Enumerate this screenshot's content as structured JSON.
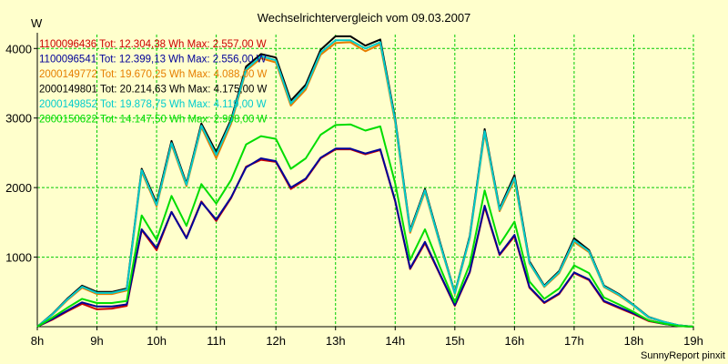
{
  "chart_data": {
    "type": "line",
    "title": "Wechselrichtervergleich vom 09.03.2007",
    "ylabel": "W",
    "xlabel": "",
    "footer": "SunnyReport pinxit",
    "grid": true,
    "legend_position": "top-left",
    "ylim": [
      0,
      4200
    ],
    "xlim": [
      8,
      19
    ],
    "y_ticks": [
      1000,
      2000,
      3000,
      4000
    ],
    "y_tick_labels": [
      "1000",
      "2000",
      "3000",
      "4000"
    ],
    "x_ticks": [
      8,
      9,
      10,
      11,
      12,
      13,
      14,
      15,
      16,
      17,
      18,
      19
    ],
    "x_tick_labels": [
      "8h",
      "9h",
      "10h",
      "11h",
      "12h",
      "13h",
      "14h",
      "15h",
      "16h",
      "17h",
      "18h",
      "19h"
    ],
    "colors": {
      "background": "#ffffcc",
      "grid": "#00cc00",
      "axis": "#000000",
      "text": "#000000"
    },
    "x": [
      8.0,
      8.25,
      8.5,
      8.75,
      9.0,
      9.25,
      9.5,
      9.75,
      10.0,
      10.25,
      10.5,
      10.75,
      11.0,
      11.25,
      11.5,
      11.75,
      12.0,
      12.25,
      12.5,
      12.75,
      13.0,
      13.25,
      13.5,
      13.75,
      14.0,
      14.25,
      14.5,
      14.75,
      15.0,
      15.25,
      15.5,
      15.75,
      16.0,
      16.25,
      16.5,
      16.75,
      17.0,
      17.25,
      17.5,
      17.75,
      18.0,
      18.25,
      18.5,
      18.75,
      19.0
    ],
    "series": [
      {
        "name": "1100096436",
        "legend": "1100096436 Tot: 12.304,38 Wh Max: 2.557,00 W",
        "color": "#cc0000",
        "values": [
          0,
          100,
          220,
          330,
          250,
          260,
          300,
          1390,
          1100,
          1650,
          1280,
          1800,
          1520,
          1850,
          2300,
          2400,
          2370,
          1980,
          2120,
          2420,
          2550,
          2550,
          2480,
          2540,
          1800,
          830,
          1200,
          750,
          300,
          780,
          1720,
          1030,
          1300,
          560,
          340,
          470,
          770,
          670,
          360,
          270,
          180,
          80,
          40,
          10,
          0
        ]
      },
      {
        "name": "1100096541",
        "legend": "1100096541 Tot: 12.399,13 Wh Max: 2.556,00 W",
        "color": "#000099",
        "values": [
          0,
          110,
          230,
          350,
          290,
          290,
          320,
          1400,
          1130,
          1650,
          1270,
          1790,
          1540,
          1860,
          2290,
          2420,
          2380,
          2000,
          2130,
          2430,
          2560,
          2560,
          2490,
          2550,
          1810,
          840,
          1220,
          760,
          310,
          790,
          1740,
          1040,
          1320,
          570,
          350,
          480,
          780,
          680,
          370,
          280,
          190,
          90,
          40,
          10,
          0
        ]
      },
      {
        "name": "2000149772",
        "legend": "2000149772 Tot: 19.670,25 Wh Max: 4.088,00 W",
        "color": "#e67e00",
        "values": [
          0,
          170,
          380,
          560,
          470,
          470,
          520,
          2230,
          1730,
          2620,
          2020,
          2870,
          2420,
          2920,
          3680,
          3860,
          3800,
          3180,
          3410,
          3910,
          4080,
          4090,
          3960,
          4060,
          2930,
          1350,
          1940,
          1190,
          470,
          1270,
          2780,
          1660,
          2110,
          910,
          570,
          770,
          1220,
          1070,
          570,
          450,
          300,
          130,
          70,
          20,
          0
        ]
      },
      {
        "name": "2000149801",
        "legend": "2000149801 Tot: 20.214,63 Wh Max: 4.175,00 W",
        "color": "#000000",
        "values": [
          0,
          180,
          400,
          590,
          500,
          500,
          550,
          2270,
          1780,
          2670,
          2060,
          2920,
          2510,
          2980,
          3740,
          3920,
          3870,
          3250,
          3480,
          3980,
          4175,
          4175,
          4040,
          4130,
          2990,
          1390,
          1980,
          1220,
          490,
          1300,
          2840,
          1700,
          2180,
          940,
          590,
          800,
          1270,
          1100,
          590,
          470,
          310,
          140,
          70,
          20,
          0
        ]
      },
      {
        "name": "2000149852",
        "legend": "2000149852 Tot: 19.878,75 Wh Max: 4.119,00 W",
        "color": "#00cccc",
        "values": [
          0,
          175,
          390,
          575,
          485,
          485,
          535,
          2250,
          1750,
          2640,
          2040,
          2890,
          2470,
          2950,
          3700,
          3890,
          3830,
          3210,
          3440,
          3940,
          4119,
          4119,
          4000,
          4090,
          2960,
          1370,
          1960,
          1200,
          480,
          1280,
          2810,
          1680,
          2140,
          920,
          580,
          785,
          1240,
          1085,
          580,
          460,
          305,
          135,
          70,
          20,
          0
        ]
      },
      {
        "name": "2000150622",
        "legend": "2000150622 Tot: 14.147,50 Wh Max: 2.908,00 W",
        "color": "#00dd00",
        "values": [
          0,
          130,
          270,
          400,
          340,
          340,
          370,
          1600,
          1250,
          1880,
          1450,
          2050,
          1770,
          2110,
          2620,
          2740,
          2700,
          2270,
          2420,
          2760,
          2900,
          2908,
          2820,
          2880,
          2060,
          960,
          1400,
          860,
          350,
          900,
          1960,
          1180,
          1510,
          650,
          400,
          550,
          880,
          770,
          420,
          320,
          210,
          90,
          45,
          10,
          0
        ]
      }
    ]
  }
}
